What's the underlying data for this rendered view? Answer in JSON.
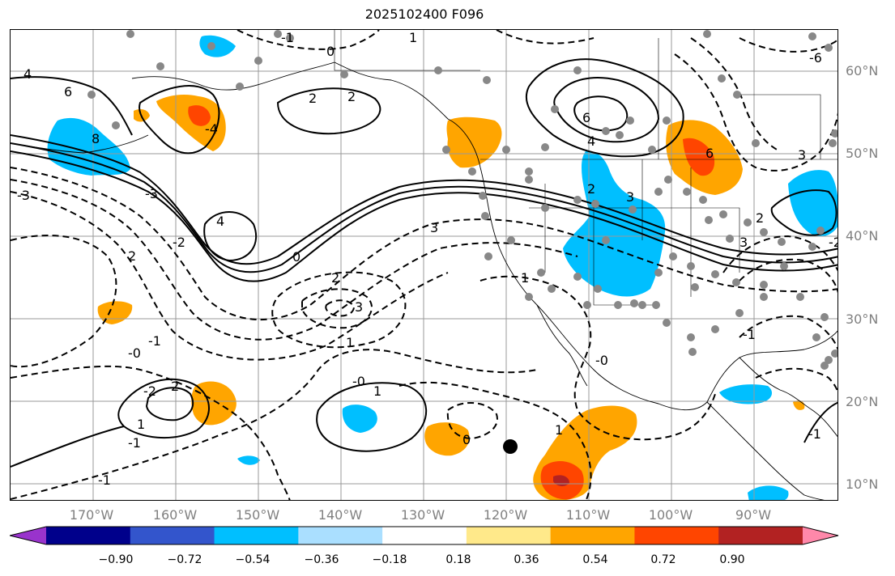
{
  "title": "2025102400 F096",
  "latitude_labels": [
    "60°N",
    "50°N",
    "40°N",
    "30°N",
    "20°N",
    "10°N"
  ],
  "longitude_labels": [
    "170°W",
    "160°W",
    "150°W",
    "140°W",
    "130°W",
    "120°W",
    "110°W",
    "100°W",
    "90°W"
  ],
  "colorbar": {
    "ticks": [
      "−0.90",
      "−0.72",
      "−0.54",
      "−0.36",
      "−0.18",
      "0.18",
      "0.36",
      "0.54",
      "0.72",
      "0.90"
    ],
    "colors": [
      "#9933cc",
      "#00008b",
      "#3355cc",
      "#00bfff",
      "#aadfff",
      "#ffffff",
      "#ffe98a",
      "#ffa500",
      "#ff4500",
      "#b22222",
      "#ff88aa"
    ]
  },
  "contour_labels": [
    "4",
    "6",
    "8",
    "-1",
    "0",
    "1",
    "2",
    "-3",
    "4",
    "-2",
    "2",
    "3",
    "2",
    "0",
    "-4",
    "3",
    "-1",
    "-0",
    "1",
    "-2",
    "1",
    "-1",
    "1",
    "-0",
    "-1",
    "0",
    "1",
    "2",
    "6",
    "6",
    "4",
    "3",
    "2",
    "3",
    "2",
    "-6",
    "3",
    "-1",
    "-0",
    "-1",
    "-2",
    "1",
    "2",
    "-3"
  ],
  "legend": {}
}
